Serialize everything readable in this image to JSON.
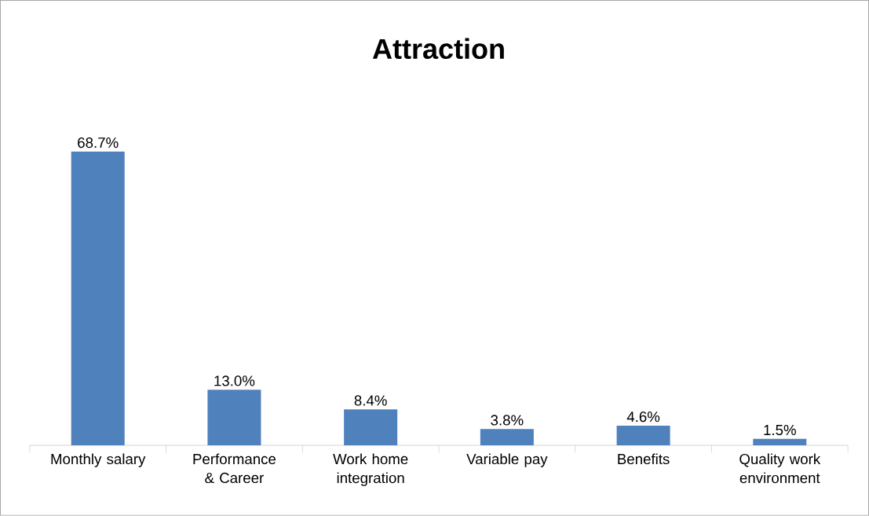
{
  "chart_data": {
    "type": "bar",
    "title": "Attraction",
    "categories": [
      "Monthly salary",
      "Performance & Career",
      "Work home integration",
      "Variable pay",
      "Benefits",
      "Quality work environment"
    ],
    "values": [
      68.7,
      13.0,
      8.4,
      3.8,
      4.6,
      1.5
    ],
    "value_labels": [
      "68.7%",
      "13.0%",
      "8.4%",
      "3.8%",
      "4.6%",
      "1.5%"
    ],
    "color": "#4f81bd"
  }
}
